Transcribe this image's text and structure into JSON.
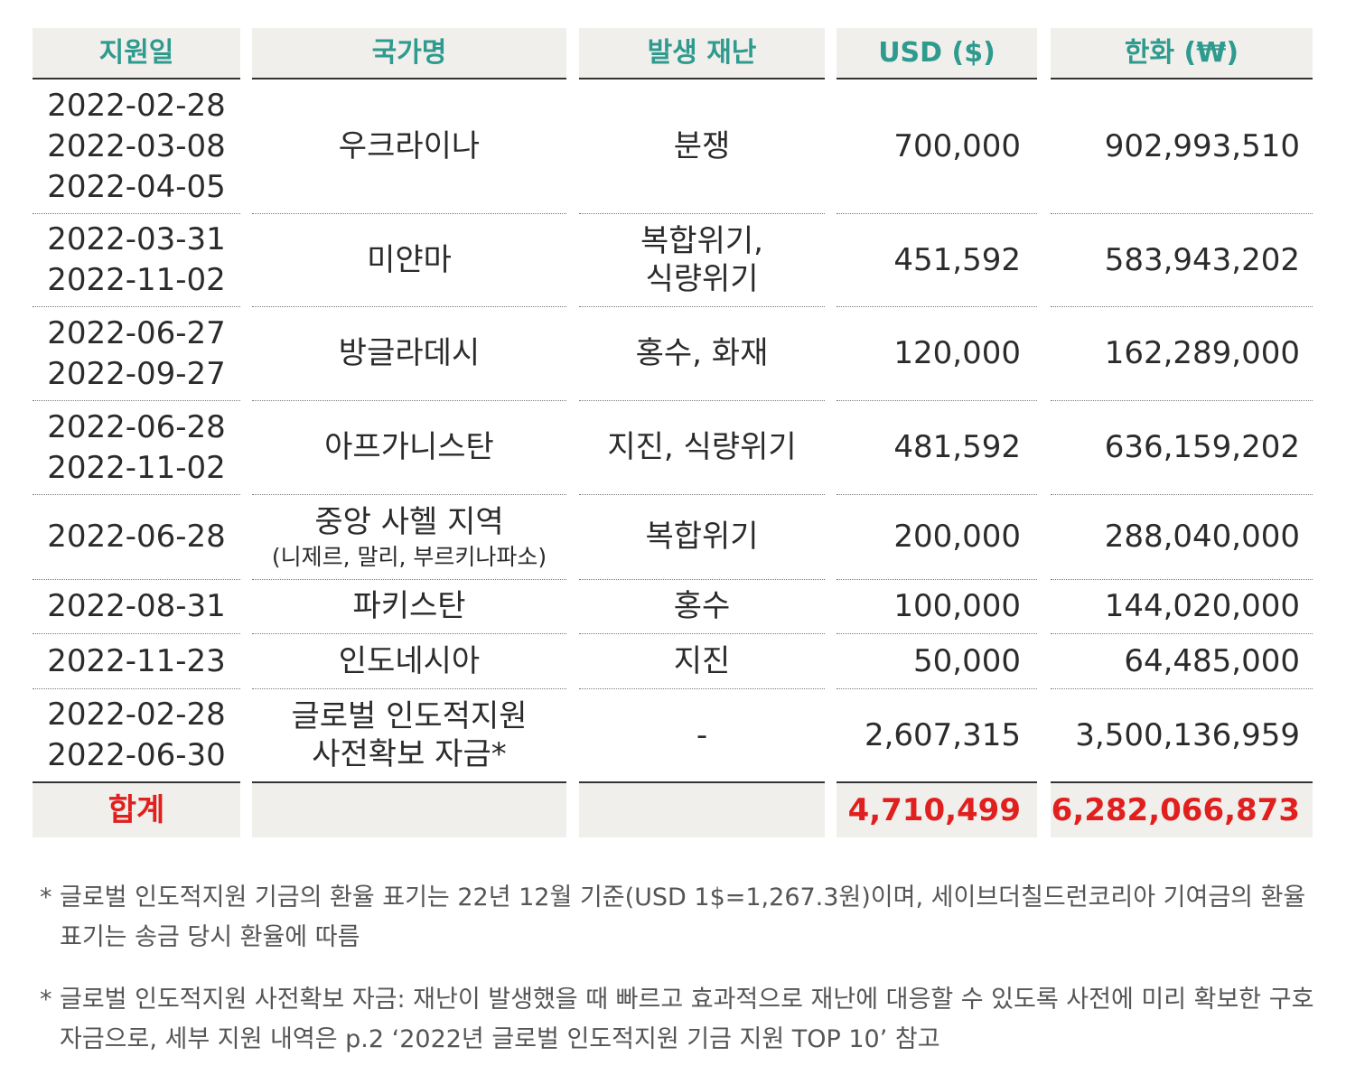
{
  "headers": [
    "지원일",
    "국가명",
    "발생 재난",
    "USD ($)",
    "한화 (₩)"
  ],
  "rows": [
    {
      "dates": [
        "2022-02-28",
        "2022-03-08",
        "2022-04-05"
      ],
      "country": "우크라이나",
      "country_sub": "",
      "disaster": [
        "분쟁"
      ],
      "usd": "700,000",
      "krw": "902,993,510"
    },
    {
      "dates": [
        "2022-03-31",
        "2022-11-02"
      ],
      "country": "미얀마",
      "country_sub": "",
      "disaster": [
        "복합위기,",
        "식량위기"
      ],
      "usd": "451,592",
      "krw": "583,943,202"
    },
    {
      "dates": [
        "2022-06-27",
        "2022-09-27"
      ],
      "country": "방글라데시",
      "country_sub": "",
      "disaster": [
        "홍수, 화재"
      ],
      "usd": "120,000",
      "krw": "162,289,000"
    },
    {
      "dates": [
        "2022-06-28",
        "2022-11-02"
      ],
      "country": "아프가니스탄",
      "country_sub": "",
      "disaster": [
        "지진, 식량위기"
      ],
      "usd": "481,592",
      "krw": "636,159,202"
    },
    {
      "dates": [
        "2022-06-28"
      ],
      "country": "중앙 사헬 지역",
      "country_sub": "(니제르, 말리, 부르키나파소)",
      "disaster": [
        "복합위기"
      ],
      "usd": "200,000",
      "krw": "288,040,000"
    },
    {
      "dates": [
        "2022-08-31"
      ],
      "country": "파키스탄",
      "country_sub": "",
      "disaster": [
        "홍수"
      ],
      "usd": "100,000",
      "krw": "144,020,000"
    },
    {
      "dates": [
        "2022-11-23"
      ],
      "country": "인도네시아",
      "country_sub": "",
      "disaster": [
        "지진"
      ],
      "usd": "50,000",
      "krw": "64,485,000"
    },
    {
      "dates": [
        "2022-02-28",
        "2022-06-30"
      ],
      "country": "글로벌 인도적지원",
      "country_sub": "사전확보 자금*",
      "disaster": [
        "-"
      ],
      "usd": "2,607,315",
      "krw": "3,500,136,959"
    }
  ],
  "total": {
    "label": "합계",
    "usd": "4,710,499",
    "krw": "6,282,066,873"
  },
  "notes": [
    {
      "star": "*",
      "text": "글로벌 인도적지원 기금의 환율 표기는 22년 12월 기준(USD 1$=1,267.3원)이며, 세이브더칠드런코리아 기여금의 환율 표기는 송금 당시 환율에 따름"
    },
    {
      "star": "*",
      "text": "글로벌 인도적지원 사전확보 자금: 재난이 발생했을 때 빠르고 효과적으로 재난에 대응할 수 있도록 사전에 미리 확보한 구호자금으로, 세부 지원 내역은 p.2 ‘2022년 글로벌 인도적지원 기금 지원 TOP 10’ 참고"
    }
  ],
  "colors": {
    "header_text": "#2f9a8e",
    "header_bg": "#f0efeb",
    "total_text": "#e0201f",
    "body_text": "#2b2b2b",
    "note_text": "#555555"
  }
}
